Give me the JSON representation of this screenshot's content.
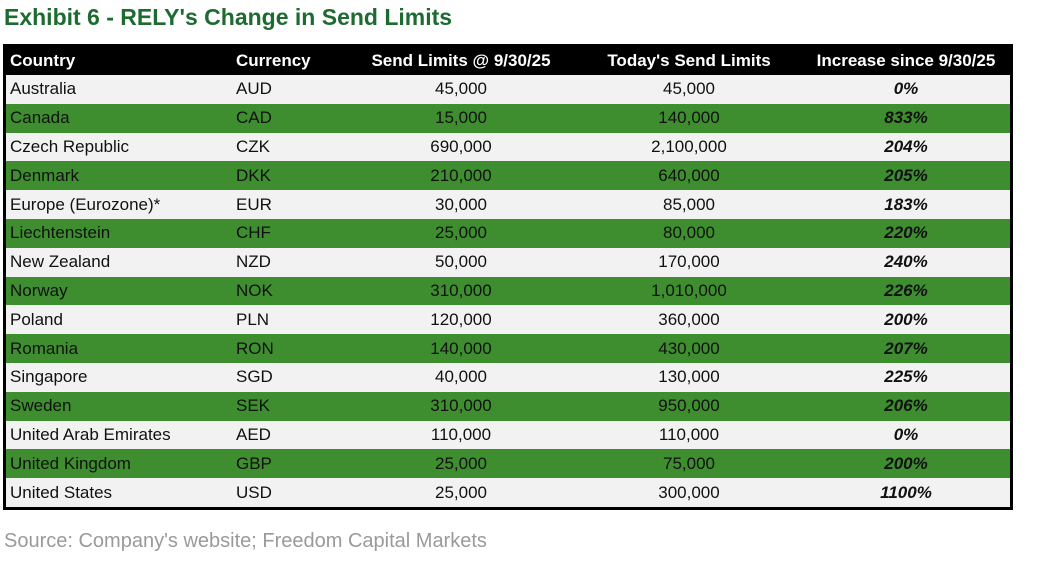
{
  "title": "Exhibit 6 - RELY's Change in Send Limits",
  "table": {
    "header": [
      "Country",
      "Currency",
      "Send Limits @ 9/30/25",
      "Today's Send Limits",
      "Increase since 9/30/25"
    ],
    "rows": [
      [
        "Australia",
        "AUD",
        "45,000",
        "45,000",
        "0%"
      ],
      [
        "Canada",
        "CAD",
        "15,000",
        "140,000",
        "833%"
      ],
      [
        "Czech Republic",
        "CZK",
        "690,000",
        "2,100,000",
        "204%"
      ],
      [
        "Denmark",
        "DKK",
        "210,000",
        "640,000",
        "205%"
      ],
      [
        "Europe (Eurozone)*",
        "EUR",
        "30,000",
        "85,000",
        "183%"
      ],
      [
        "Liechtenstein",
        "CHF",
        "25,000",
        "80,000",
        "220%"
      ],
      [
        "New Zealand",
        "NZD",
        "50,000",
        "170,000",
        "240%"
      ],
      [
        "Norway",
        "NOK",
        "310,000",
        "1,010,000",
        "226%"
      ],
      [
        "Poland",
        "PLN",
        "120,000",
        "360,000",
        "200%"
      ],
      [
        "Romania",
        "RON",
        "140,000",
        "430,000",
        "207%"
      ],
      [
        "Singapore",
        "SGD",
        "40,000",
        "130,000",
        "225%"
      ],
      [
        "Sweden",
        "SEK",
        "310,000",
        "950,000",
        "206%"
      ],
      [
        "United Arab Emirates",
        "AED",
        "110,000",
        "110,000",
        "0%"
      ],
      [
        "United Kingdom",
        "GBP",
        "25,000",
        "75,000",
        "200%"
      ],
      [
        "United States",
        "USD",
        "25,000",
        "300,000",
        "1100%"
      ]
    ]
  },
  "source": "Source: Company's website; Freedom Capital Markets"
}
